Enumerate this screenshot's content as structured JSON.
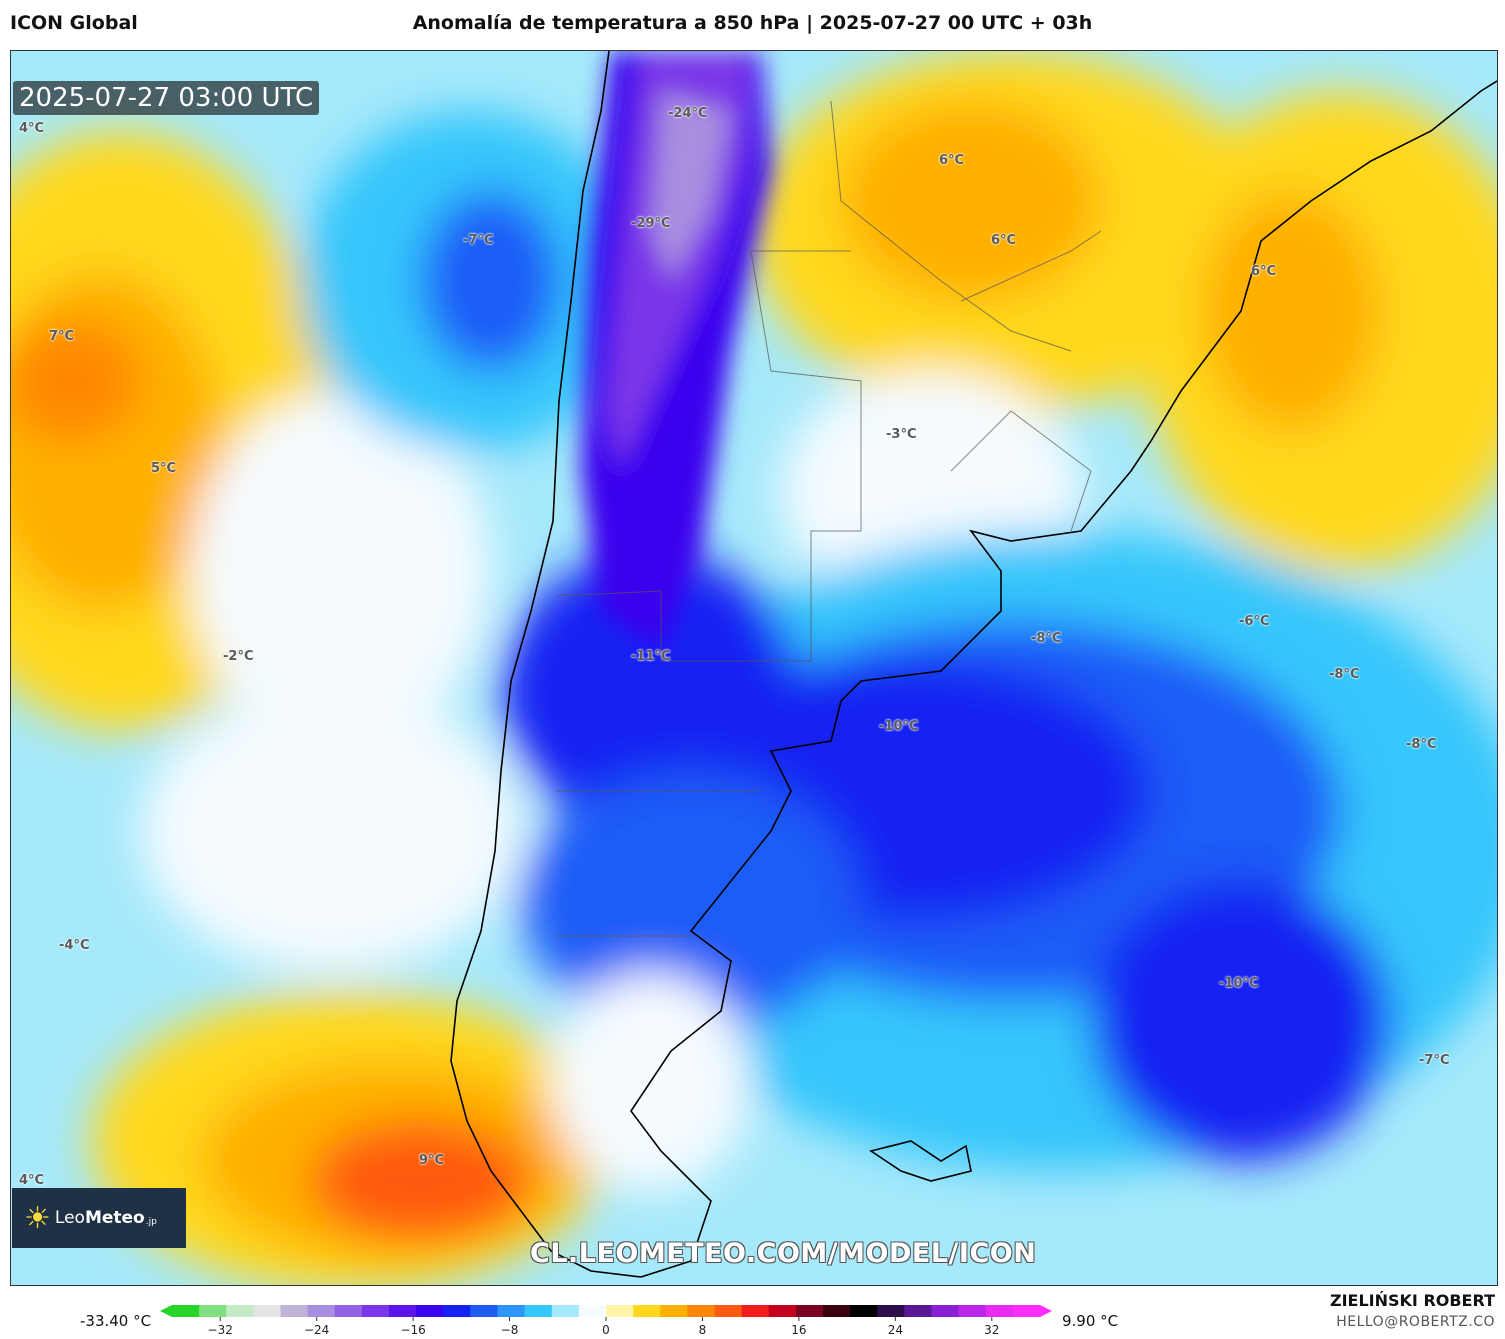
{
  "header": {
    "model": "ICON Global",
    "title": "Anomalía de temperatura a 850 hPa | 2025-07-27 00 UTC + 03h"
  },
  "map": {
    "timestamp": "2025-07-27 03:00 UTC",
    "labels": [
      "4°C",
      "-24°C",
      "6°C",
      "-29°C",
      "-7°C",
      "6°C",
      "6°C",
      "7°C",
      "-3°C",
      "5°C",
      "-2°C",
      "-11°C",
      "-8°C",
      "-6°C",
      "-8°C",
      "-10°C",
      "-8°C",
      "-4°C",
      "-10°C",
      "-7°C",
      "9°C",
      "4°C"
    ],
    "watermark": "CL.LEOMETEO.COM/MODEL/ICON",
    "logo_text_light": "Leo",
    "logo_text_bold": "Meteo",
    "logo_suffix": ".jp"
  },
  "colorbar": {
    "min_label": "-33.40 °C",
    "max_label": "9.90 °C",
    "ticks": [
      "−32",
      "−24",
      "−16",
      "−8",
      "0",
      "8",
      "16",
      "24",
      "32"
    ],
    "colors": [
      "#27d427",
      "#7fe07f",
      "#c5e8c5",
      "#e5e5e5",
      "#c0b3d8",
      "#a88ee0",
      "#9361e3",
      "#7a36e8",
      "#5c14ea",
      "#3a05ee",
      "#1522f2",
      "#1e5cf7",
      "#2e96fb",
      "#35c6fb",
      "#a6e9fb",
      "#f5fbff",
      "#fff4a8",
      "#ffd81e",
      "#ffb000",
      "#ff8800",
      "#ff5a10",
      "#f21d1d",
      "#c4001c",
      "#7a0020",
      "#3b0010",
      "#000000",
      "#2a0f4a",
      "#5a1795",
      "#8a20d6",
      "#bb27ea",
      "#e82bf0",
      "#ff2dff"
    ]
  },
  "credits": {
    "author": "ZIELIŃSKI ROBERT",
    "email": "HELLO@ROBERTZ.CO"
  }
}
